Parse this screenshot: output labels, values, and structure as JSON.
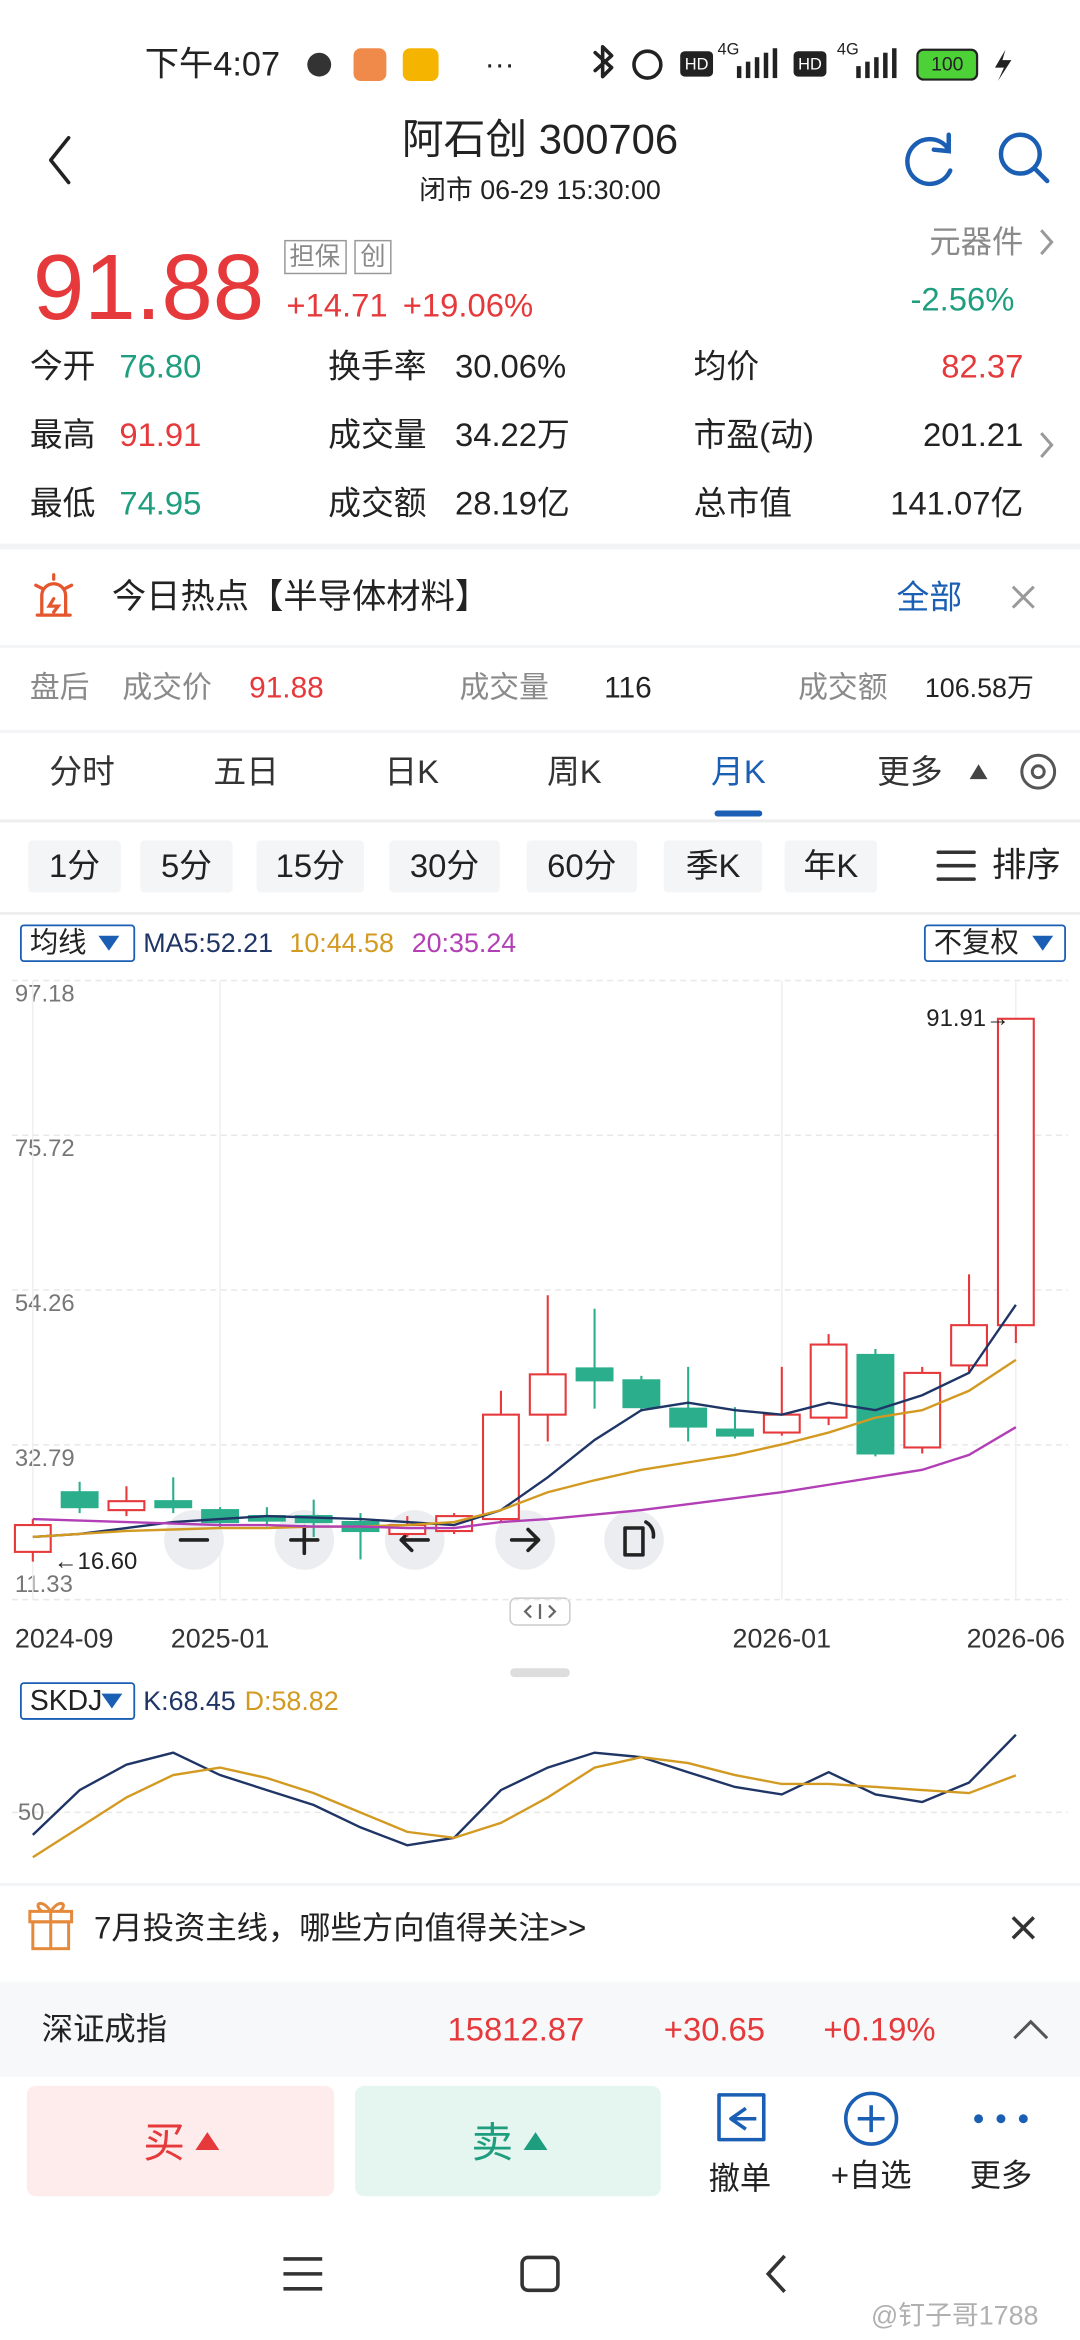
{
  "status_bar": {
    "time": "下午4:07",
    "hd_1": "HD",
    "net_1": "4G",
    "hd_2": "HD",
    "net_2": "4G",
    "battery": "100"
  },
  "header": {
    "title": "阿石创 300706",
    "subtitle": "闭市 06-29 15:30:00"
  },
  "quote": {
    "price": "91.88",
    "tags": [
      "担保",
      "创"
    ],
    "change": "+14.71",
    "change_pct": "+19.06%",
    "sector": "元器件",
    "sector_change": "-2.56%"
  },
  "stats": {
    "rows": [
      [
        "今开",
        "76.80",
        "换手率",
        "30.06%",
        "均价",
        "82.37"
      ],
      [
        "最高",
        "91.91",
        "成交量",
        "34.22万",
        "市盈(动)",
        "201.21"
      ],
      [
        "最低",
        "74.95",
        "成交额",
        "28.19亿",
        "总市值",
        "141.07亿"
      ]
    ]
  },
  "hot_topic": {
    "text": "今日热点【半导体材料】",
    "action": "全部"
  },
  "after_hours": {
    "label": "盘后",
    "price_label": "成交价",
    "price": "91.88",
    "volume_label": "成交量",
    "volume": "116",
    "amount_label": "成交额",
    "amount": "106.58万"
  },
  "tabs": {
    "items": [
      "分时",
      "五日",
      "日K",
      "周K",
      "月K",
      "更多"
    ],
    "active": 4
  },
  "periods": {
    "items": [
      "1分",
      "5分",
      "15分",
      "30分",
      "60分",
      "季K",
      "年K"
    ],
    "sort": "排序"
  },
  "chart_data": [
    {
      "type": "candlestick",
      "indicator": "均线",
      "adjust": "不复权",
      "categories": [
        "2024-09",
        null,
        null,
        null,
        "2025-01",
        null,
        null,
        null,
        null,
        null,
        null,
        null,
        null,
        null,
        null,
        null,
        "2026-01",
        null,
        null,
        null,
        null,
        "2026-06"
      ],
      "open": [
        17.95,
        26.22,
        23.74,
        24.98,
        23.74,
        22.91,
        22.91,
        22.09,
        20.43,
        20.84,
        22.5,
        36.98,
        43.39,
        41.74,
        37.81,
        34.91,
        34.5,
        36.57,
        45.26,
        32.43,
        43.81,
        49.39
      ],
      "high": [
        22.5,
        27.67,
        27.05,
        28.29,
        24.15,
        24.15,
        25.19,
        23.33,
        22.91,
        23.33,
        40.29,
        53.53,
        51.67,
        42.36,
        43.6,
        38.02,
        43.6,
        48.15,
        46.08,
        43.6,
        56.43,
        91.91
      ],
      "low": [
        16.6,
        23.33,
        22.91,
        23.33,
        21.26,
        21.47,
        20.02,
        16.91,
        20.02,
        20.43,
        22.09,
        33.26,
        37.81,
        37.39,
        33.26,
        33.67,
        34.08,
        35.53,
        31.19,
        31.6,
        42.77,
        46.91
      ],
      "close": [
        21.67,
        24.15,
        24.98,
        24.15,
        22.09,
        22.29,
        22.09,
        20.84,
        21.67,
        22.91,
        36.98,
        42.57,
        41.74,
        38.02,
        35.33,
        34.08,
        36.98,
        46.7,
        31.6,
        42.77,
        49.39,
        91.88
      ],
      "up_color": "#e5393b",
      "down_color": "#2aae8c",
      "series": [
        {
          "name": "MA5:52.21",
          "color": "#1f3566",
          "values": [
            20.02,
            20.43,
            21.26,
            22.09,
            22.5,
            22.91,
            22.71,
            22.5,
            22.09,
            21.67,
            23.74,
            28.29,
            33.46,
            37.6,
            38.64,
            37.6,
            36.98,
            38.64,
            37.6,
            39.67,
            42.77,
            52.21
          ]
        },
        {
          "name": "10:44.58",
          "color": "#d39a22",
          "values": [
            20.02,
            20.43,
            20.84,
            21.05,
            21.26,
            21.26,
            21.47,
            21.47,
            21.67,
            22.09,
            23.74,
            26.22,
            27.88,
            29.33,
            30.36,
            31.4,
            32.84,
            34.5,
            36.57,
            37.6,
            40.29,
            44.58
          ]
        },
        {
          "name": "20:35.24",
          "color": "#b23fb5",
          "values": [
            22.5,
            22.29,
            22.09,
            21.88,
            21.67,
            21.67,
            21.47,
            21.47,
            21.26,
            21.26,
            22.09,
            22.5,
            23.12,
            23.74,
            24.57,
            25.4,
            26.22,
            27.26,
            28.29,
            29.33,
            31.4,
            35.24
          ]
        }
      ],
      "ylim": [
        11.33,
        97.18
      ],
      "yticks": [
        97.18,
        75.72,
        54.26,
        32.79,
        11.33
      ],
      "grid": true,
      "high_label": "91.91→",
      "low_label": "←16.60"
    },
    {
      "type": "line",
      "indicator": "SKDJ",
      "series": [
        {
          "name": "K:68.45",
          "color": "#1f3566",
          "values": [
            44.68,
            55.32,
            61.35,
            64.18,
            58.87,
            55.32,
            51.77,
            46.45,
            42.2,
            43.97,
            55.32,
            60.64,
            64.18,
            63.12,
            59.57,
            56.03,
            54.26,
            59.57,
            54.26,
            52.48,
            57.09,
            68.45
          ]
        },
        {
          "name": "D:58.82",
          "color": "#d39a22",
          "values": [
            39.36,
            46.45,
            53.55,
            58.87,
            60.64,
            58.16,
            54.61,
            50,
            45.39,
            43.97,
            47.52,
            53.55,
            60.64,
            63.12,
            61.7,
            58.87,
            56.74,
            56.74,
            56.03,
            55.32,
            54.61,
            58.82
          ]
        }
      ],
      "ylim": [
        35,
        80
      ],
      "yticks": [
        50
      ]
    }
  ],
  "promo": {
    "text": "7月投资主线，哪些方向值得关注>>"
  },
  "index_bar": {
    "name": "深证成指",
    "value": "15812.87",
    "change": "+30.65",
    "change_pct": "+0.19%"
  },
  "actions": {
    "buy": "买",
    "sell": "卖",
    "cancel": "撤单",
    "watchlist": "+自选",
    "more": "更多"
  },
  "watermark": "@钉子哥1788"
}
